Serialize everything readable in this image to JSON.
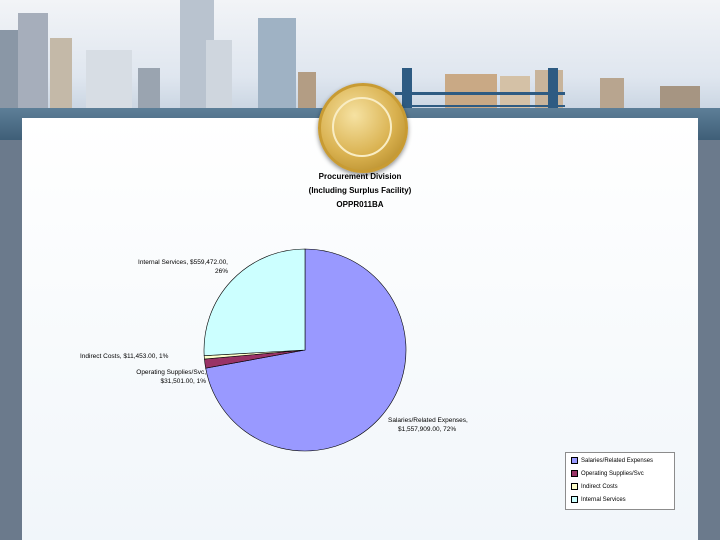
{
  "chart_data": {
    "type": "pie",
    "title_lines": [
      "Procurement Division",
      "(Including Surplus Facility)",
      "OPPR011BA"
    ],
    "slices": [
      {
        "name": "Salaries/Related Expenses",
        "label_lines": [
          "Salaries/Related Expenses,",
          "$1,557,909.00, 72%"
        ],
        "value": 1557909.0,
        "percent": 72,
        "color": "#9999ff"
      },
      {
        "name": "Operating Supplies/Svc",
        "label_lines": [
          "Operating Supplies/Svc,",
          "$31,501.00, 1%"
        ],
        "value": 31501.0,
        "percent": 1,
        "color": "#993366"
      },
      {
        "name": "Indirect Costs",
        "label_lines": [
          "Indirect Costs, $11,453.00, 1%"
        ],
        "value": 11453.0,
        "percent": 1,
        "color": "#ffffcc"
      },
      {
        "name": "Internal Services",
        "label_lines": [
          "Internal Services, $559,472.00,",
          "26%"
        ],
        "value": 559472.0,
        "percent": 26,
        "color": "#ccffff"
      }
    ],
    "legend_placement": "bottom-right"
  }
}
